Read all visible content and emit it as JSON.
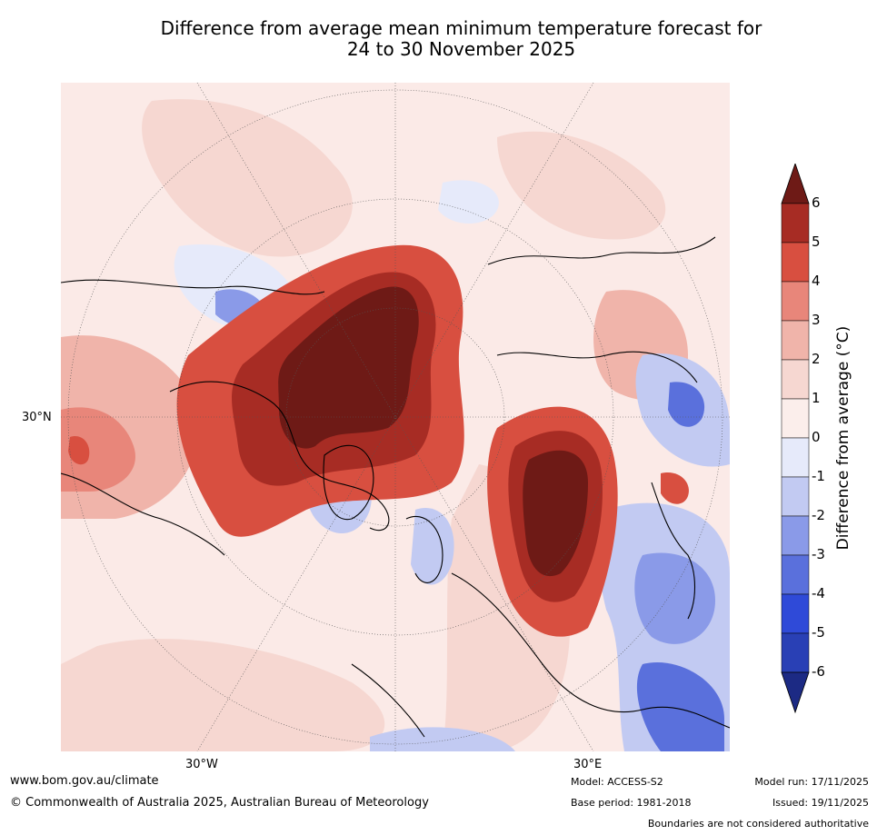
{
  "title": {
    "line1": "Difference from average mean minimum temperature forecast for",
    "line2": "24 to 30 November 2025"
  },
  "map": {
    "lat_label": "30°N",
    "lon_labels": [
      "30°W",
      "30°E"
    ],
    "projection": "north-polar-stereographic"
  },
  "colorbar": {
    "label": "Difference from average (°C)",
    "ticks": [
      "6",
      "5",
      "4",
      "3",
      "2",
      "1",
      "0",
      "-1",
      "-2",
      "-3",
      "-4",
      "-5",
      "-6"
    ],
    "colors": [
      "#6e1a16",
      "#a72c24",
      "#d84f40",
      "#e8867a",
      "#f0b4aa",
      "#f6d7d1",
      "#fbeeeb",
      "#e6eafa",
      "#c2caf2",
      "#8a9ae8",
      "#5a70dc",
      "#2f4ad8",
      "#2940b5",
      "#1c2a84"
    ]
  },
  "footer": {
    "website": "www.bom.gov.au/climate",
    "copyright": "© Commonwealth of Australia 2025, Australian Bureau of Meteorology",
    "model": "Model: ACCESS-S2",
    "base_period": "Base period: 1981-2018",
    "model_run": "Model run: 17/11/2025",
    "issued": "Issued: 19/11/2025",
    "disclaimer": "Boundaries are not considered authoritative"
  }
}
